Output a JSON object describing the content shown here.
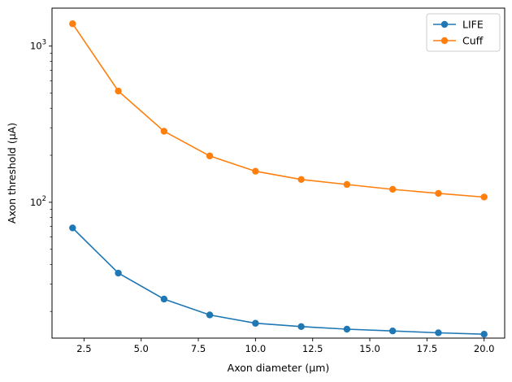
{
  "chart_data": {
    "type": "line",
    "xlabel": "Axon diameter (μm)",
    "ylabel": "Axon threshold (μA)",
    "x": [
      2,
      4,
      6,
      8,
      10,
      12,
      14,
      16,
      18,
      20
    ],
    "xlim": [
      1.1,
      20.9
    ],
    "ylim": [
      13.5,
      1750
    ],
    "yscale": "log",
    "x_ticks": [
      2.5,
      5.0,
      7.5,
      10.0,
      12.5,
      15.0,
      17.5,
      20.0
    ],
    "x_tick_labels": [
      "2.5",
      "5.0",
      "7.5",
      "10.0",
      "12.5",
      "15.0",
      "17.5",
      "20.0"
    ],
    "y_major_ticks": [
      100,
      1000
    ],
    "y_tick_labels": [
      {
        "base": "10",
        "exp": "2"
      },
      {
        "base": "10",
        "exp": "3"
      }
    ],
    "y_minor_ticks": [
      20,
      30,
      40,
      50,
      60,
      70,
      80,
      90,
      200,
      300,
      400,
      500,
      600,
      700,
      800,
      900
    ],
    "grid": false,
    "legend_placement": "upper-right",
    "series": [
      {
        "name": "LIFE",
        "color": "#1f77b4",
        "marker": "circle",
        "values": [
          68.5,
          35.2,
          24.0,
          19.0,
          16.8,
          16.0,
          15.4,
          15.0,
          14.6,
          14.3
        ]
      },
      {
        "name": "Cuff",
        "color": "#ff7f0e",
        "marker": "circle",
        "values": [
          1390,
          515,
          285,
          198,
          158,
          140,
          130,
          121,
          114,
          108
        ]
      }
    ]
  }
}
